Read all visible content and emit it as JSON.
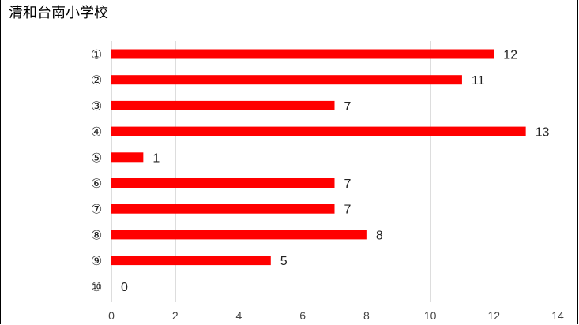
{
  "chart_data": {
    "type": "bar",
    "orientation": "horizontal",
    "title": "清和台南小学校",
    "categories": [
      "①",
      "②",
      "③",
      "④",
      "⑤",
      "⑥",
      "⑦",
      "⑧",
      "⑨",
      "⑩"
    ],
    "values": [
      12,
      11,
      7,
      13,
      1,
      7,
      7,
      8,
      5,
      0
    ],
    "xlim": [
      0,
      14
    ],
    "x_ticks": [
      0,
      2,
      4,
      6,
      8,
      10,
      12,
      14
    ],
    "xlabel": "",
    "ylabel": "",
    "grid": "vertical",
    "legend": "none",
    "bar_color": "#ff0000",
    "gridline_color": "#dddddd"
  }
}
